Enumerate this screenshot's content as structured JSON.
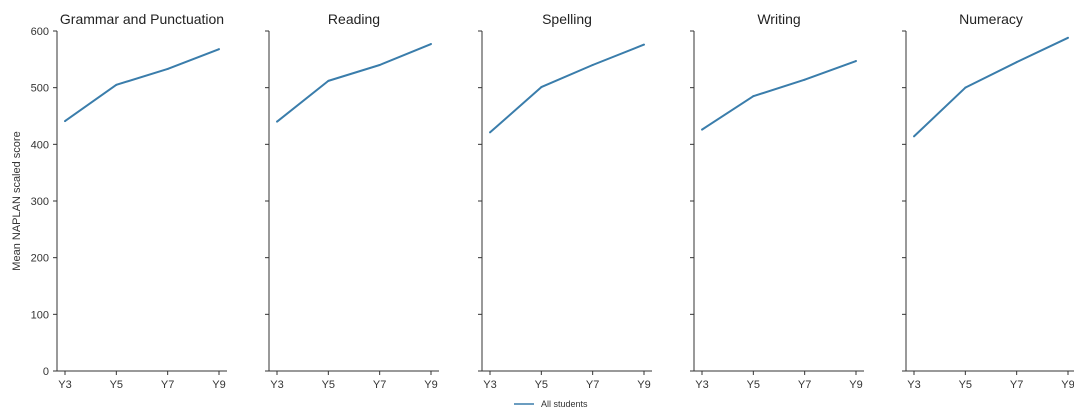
{
  "chart_data": {
    "type": "line",
    "ylabel": "Mean NAPLAN scaled score",
    "ylim": [
      0,
      600
    ],
    "y_ticks": [
      "0",
      "100",
      "200",
      "300",
      "400",
      "500",
      "600"
    ],
    "categories": [
      "Y3",
      "Y5",
      "Y7",
      "Y9"
    ],
    "grid": false,
    "legend": {
      "placement": "bottom-center",
      "entries": [
        "All students"
      ]
    },
    "series_color": "#3a7dab",
    "panels": [
      {
        "title": "Grammar and Punctuation",
        "series": [
          {
            "name": "All students",
            "values": [
              441,
              505,
              533,
              568
            ]
          }
        ]
      },
      {
        "title": "Reading",
        "series": [
          {
            "name": "All students",
            "values": [
              440,
              512,
              540,
              577
            ]
          }
        ]
      },
      {
        "title": "Spelling",
        "series": [
          {
            "name": "All students",
            "values": [
              421,
              501,
              540,
              576
            ]
          }
        ]
      },
      {
        "title": "Writing",
        "series": [
          {
            "name": "All students",
            "values": [
              426,
              485,
              514,
              547
            ]
          }
        ]
      },
      {
        "title": "Numeracy",
        "series": [
          {
            "name": "All students",
            "values": [
              414,
              500,
              545,
              588
            ]
          }
        ]
      }
    ]
  }
}
